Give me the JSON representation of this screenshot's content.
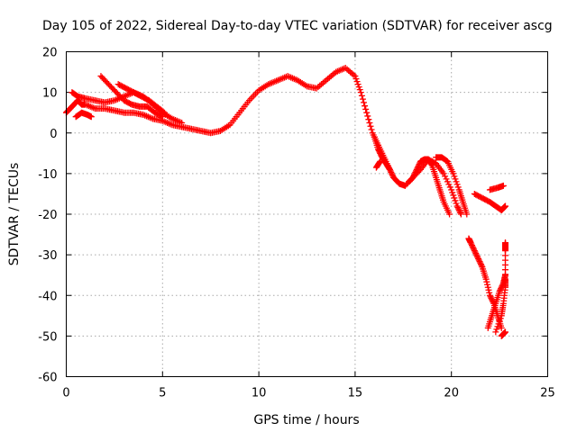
{
  "chart_data": {
    "type": "scatter",
    "title": "Day 105 of 2022, Sidereal Day-to-day VTEC variation (SDTVAR) for receiver ascg",
    "xlabel": "GPS time / hours",
    "ylabel": "SDTVAR / TECUs",
    "xlim": [
      0,
      25
    ],
    "ylim": [
      -60,
      20
    ],
    "xticks": [
      0,
      5,
      10,
      15,
      20,
      25
    ],
    "yticks": [
      -60,
      -50,
      -40,
      -30,
      -20,
      -10,
      0,
      10,
      20
    ],
    "xtick_labels": [
      "0",
      "5",
      "10",
      "15",
      "20",
      "25"
    ],
    "ytick_labels": [
      "-60",
      "-50",
      "-40",
      "-30",
      "-20",
      "-10",
      "0",
      "10",
      "20"
    ],
    "grid": true,
    "marker": "+",
    "color": "#ff0000",
    "series": [
      {
        "name": "main-arc",
        "points": [
          [
            0.0,
            5
          ],
          [
            0.2,
            6
          ],
          [
            0.4,
            7
          ],
          [
            0.6,
            8
          ],
          [
            0.8,
            7
          ],
          [
            1.0,
            7
          ],
          [
            1.5,
            6
          ],
          [
            2.0,
            6
          ],
          [
            2.5,
            5.5
          ],
          [
            3.0,
            5
          ],
          [
            3.5,
            5
          ],
          [
            4.0,
            4.5
          ],
          [
            4.5,
            3.5
          ],
          [
            5.0,
            3
          ],
          [
            5.5,
            2
          ],
          [
            6.0,
            1.5
          ],
          [
            6.5,
            1
          ],
          [
            7.0,
            0.5
          ],
          [
            7.5,
            0
          ],
          [
            8.0,
            0.5
          ],
          [
            8.5,
            2
          ],
          [
            9.0,
            5
          ],
          [
            9.5,
            8
          ],
          [
            10.0,
            10.5
          ],
          [
            10.5,
            12
          ],
          [
            11.0,
            13
          ],
          [
            11.5,
            14
          ],
          [
            12.0,
            13
          ],
          [
            12.5,
            11.5
          ],
          [
            13.0,
            11
          ],
          [
            13.5,
            13
          ],
          [
            14.0,
            15
          ],
          [
            14.5,
            16
          ],
          [
            15.0,
            14
          ],
          [
            15.3,
            10
          ],
          [
            15.6,
            5
          ],
          [
            15.9,
            0
          ],
          [
            16.2,
            -3
          ],
          [
            16.5,
            -6
          ],
          [
            16.8,
            -9
          ],
          [
            17.0,
            -11
          ],
          [
            17.3,
            -12.5
          ],
          [
            17.6,
            -13
          ],
          [
            18.0,
            -11
          ],
          [
            18.4,
            -9
          ],
          [
            18.8,
            -6.5
          ],
          [
            19.2,
            -7.5
          ],
          [
            19.6,
            -10
          ],
          [
            20.0,
            -14
          ],
          [
            20.3,
            -18
          ],
          [
            20.5,
            -20
          ]
        ]
      },
      {
        "name": "upper-arc-a",
        "points": [
          [
            0.3,
            10
          ],
          [
            0.6,
            9
          ],
          [
            1.0,
            8.5
          ],
          [
            1.5,
            8
          ],
          [
            2.0,
            7.5
          ],
          [
            2.5,
            8
          ],
          [
            3.0,
            9
          ],
          [
            3.5,
            10
          ],
          [
            4.0,
            9
          ],
          [
            4.5,
            7
          ],
          [
            5.0,
            5
          ],
          [
            5.5,
            3.5
          ],
          [
            6.0,
            2.5
          ]
        ]
      },
      {
        "name": "upper-arc-b",
        "points": [
          [
            1.8,
            14
          ],
          [
            2.2,
            12
          ],
          [
            2.6,
            10
          ],
          [
            3.0,
            8
          ],
          [
            3.4,
            7
          ],
          [
            3.8,
            6.5
          ],
          [
            4.2,
            6.5
          ],
          [
            4.6,
            5
          ],
          [
            5.0,
            4
          ]
        ]
      },
      {
        "name": "arc-c",
        "points": [
          [
            2.7,
            12
          ],
          [
            3.1,
            11
          ],
          [
            3.5,
            10
          ],
          [
            3.9,
            9
          ],
          [
            4.3,
            8
          ],
          [
            4.7,
            6.5
          ],
          [
            5.1,
            5
          ]
        ]
      },
      {
        "name": "low-scatter",
        "points": [
          [
            0.5,
            4
          ],
          [
            0.8,
            5
          ],
          [
            1.1,
            4.5
          ],
          [
            1.3,
            4
          ]
        ]
      },
      {
        "name": "dip-band",
        "points": [
          [
            16.0,
            -1
          ],
          [
            16.2,
            -4
          ],
          [
            16.4,
            -6
          ],
          [
            16.6,
            -7.5
          ],
          [
            16.8,
            -9
          ]
        ]
      },
      {
        "name": "cross-arc",
        "points": [
          [
            17.8,
            -12
          ],
          [
            18.0,
            -11
          ],
          [
            18.2,
            -9
          ],
          [
            18.4,
            -7
          ],
          [
            18.6,
            -6.5
          ],
          [
            18.8,
            -6.5
          ],
          [
            19.0,
            -8
          ],
          [
            19.2,
            -11
          ],
          [
            19.4,
            -14
          ],
          [
            19.6,
            -17
          ],
          [
            19.9,
            -20
          ]
        ]
      },
      {
        "name": "rise-arc",
        "points": [
          [
            16.1,
            -8.5
          ],
          [
            16.3,
            -7
          ]
        ]
      },
      {
        "name": "mid-cross",
        "points": [
          [
            19.2,
            -6
          ],
          [
            19.5,
            -6
          ],
          [
            19.8,
            -7
          ],
          [
            20.1,
            -10
          ],
          [
            20.4,
            -14
          ],
          [
            20.6,
            -17
          ],
          [
            20.8,
            -20
          ]
        ]
      },
      {
        "name": "right-falls",
        "points": [
          [
            20.9,
            -26
          ],
          [
            21.0,
            -27
          ],
          [
            21.2,
            -29
          ],
          [
            21.4,
            -31
          ],
          [
            21.6,
            -33
          ],
          [
            21.8,
            -36
          ],
          [
            22.0,
            -40
          ],
          [
            22.2,
            -42
          ],
          [
            22.4,
            -45
          ],
          [
            22.6,
            -48
          ]
        ]
      },
      {
        "name": "right-rise",
        "points": [
          [
            21.9,
            -48
          ],
          [
            22.1,
            -45
          ],
          [
            22.3,
            -42
          ],
          [
            22.5,
            -39
          ],
          [
            22.7,
            -37
          ],
          [
            22.8,
            -35
          ]
        ]
      },
      {
        "name": "right-top",
        "points": [
          [
            21.2,
            -15
          ],
          [
            21.6,
            -16
          ],
          [
            22.0,
            -17
          ],
          [
            22.3,
            -18
          ],
          [
            22.6,
            -19
          ]
        ]
      },
      {
        "name": "right-edge-a",
        "points": [
          [
            22.0,
            -14
          ],
          [
            22.4,
            -13.5
          ],
          [
            22.7,
            -13
          ]
        ]
      },
      {
        "name": "right-edge-b",
        "points": [
          [
            22.6,
            -19
          ],
          [
            22.7,
            -18.5
          ],
          [
            22.8,
            -18
          ]
        ]
      },
      {
        "name": "right-edge-c",
        "points": [
          [
            22.6,
            -50
          ],
          [
            22.7,
            -49.5
          ],
          [
            22.8,
            -49
          ]
        ]
      },
      {
        "name": "right-stack",
        "points": [
          [
            22.8,
            -27
          ],
          [
            22.8,
            -28
          ],
          [
            22.8,
            -29
          ],
          [
            22.8,
            -36
          ],
          [
            22.8,
            -38
          ],
          [
            22.7,
            -42
          ],
          [
            22.6,
            -45
          ],
          [
            22.3,
            -49
          ]
        ]
      }
    ]
  }
}
